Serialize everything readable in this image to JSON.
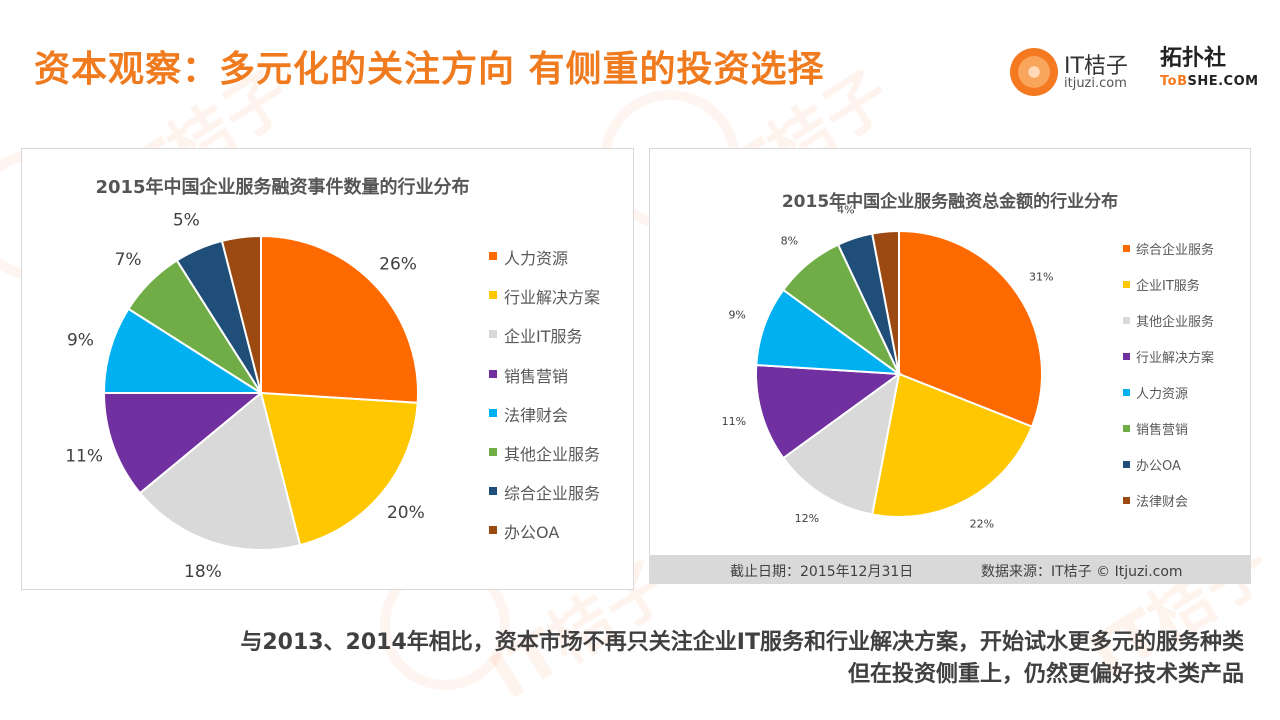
{
  "header": {
    "title": "资本观察：多元化的关注方向 有侧重的投资选择"
  },
  "logos": {
    "itjuzi_name": "IT桔子",
    "itjuzi_url": "itjuzi.com",
    "tobshe_cn": "拓扑社",
    "tobshe_en_a": "ToB",
    "tobshe_en_b": "SHE.COM"
  },
  "watermark_text": "IT桔子",
  "colors": {
    "orange": "#ff6a00",
    "yellow": "#ffc700",
    "gray": "#d9d9d9",
    "purple": "#7030a0",
    "cyan": "#00b0f0",
    "green": "#70ad47",
    "navy": "#1f4e79",
    "brown": "#9c4a12",
    "title_orange": "#f07a1e"
  },
  "chart_data": [
    {
      "type": "pie",
      "title": "2015年中国企业服务融资事件数量的行业分布",
      "legend_position": "right",
      "slices": [
        {
          "label": "人力资源",
          "value": 26,
          "display": "26%",
          "color": "#ff6a00"
        },
        {
          "label": "行业解决方案",
          "value": 20,
          "display": "20%",
          "color": "#ffc700"
        },
        {
          "label": "企业IT服务",
          "value": 18,
          "display": "18%",
          "color": "#d9d9d9"
        },
        {
          "label": "销售营销",
          "value": 11,
          "display": "11%",
          "color": "#7030a0"
        },
        {
          "label": "法律财会",
          "value": 9,
          "display": "9%",
          "color": "#00b0f0"
        },
        {
          "label": "其他企业服务",
          "value": 7,
          "display": "7%",
          "color": "#70ad47"
        },
        {
          "label": "综合企业服务",
          "value": 5,
          "display": "5%",
          "color": "#1f4e79"
        },
        {
          "label": "办公OA",
          "value": 4,
          "display": "",
          "color": "#9c4a12"
        }
      ]
    },
    {
      "type": "pie",
      "title": "2015年中国企业服务融资总金额的行业分布",
      "legend_position": "right",
      "slices": [
        {
          "label": "综合企业服务",
          "value": 31,
          "display": "31%",
          "color": "#ff6a00"
        },
        {
          "label": "企业IT服务",
          "value": 22,
          "display": "22%",
          "color": "#ffc700"
        },
        {
          "label": "其他企业服务",
          "value": 12,
          "display": "12%",
          "color": "#d9d9d9"
        },
        {
          "label": "行业解决方案",
          "value": 11,
          "display": "11%",
          "color": "#7030a0"
        },
        {
          "label": "人力资源",
          "value": 9,
          "display": "9%",
          "color": "#00b0f0"
        },
        {
          "label": "销售营销",
          "value": 8,
          "display": "8%",
          "color": "#70ad47"
        },
        {
          "label": "办公OA",
          "value": 4,
          "display": "4%",
          "color": "#1f4e79"
        },
        {
          "label": "法律财会",
          "value": 3,
          "display": "",
          "color": "#9c4a12"
        }
      ]
    }
  ],
  "footer": {
    "date": "截止日期：2015年12月31日",
    "source": "数据来源：IT桔子 © Itjuzi.com"
  },
  "summary": {
    "line1": "与2013、2014年相比，资本市场不再只关注企业IT服务和行业解决方案，开始试水更多元的服务种类",
    "line2": "但在投资侧重上，仍然更偏好技术类产品"
  }
}
